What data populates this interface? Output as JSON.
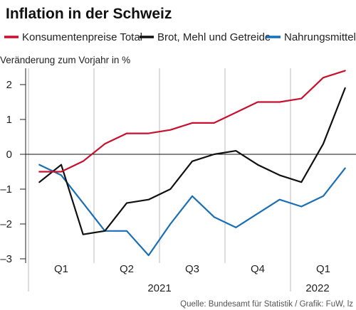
{
  "chart_data": {
    "type": "line",
    "title": "Inflation in der Schweiz",
    "ylabel": "Veränderung zum Vorjahr in %",
    "source": "Quelle: Bundesamt für Statistik / Grafik: FuW, lz",
    "ylim": [
      -3,
      2.5
    ],
    "yticks": [
      {
        "value": 2,
        "label": "2"
      },
      {
        "value": 1,
        "label": "1"
      },
      {
        "value": 0,
        "label": "0"
      },
      {
        "value": -1,
        "label": "–1"
      },
      {
        "value": -2,
        "label": "–2"
      },
      {
        "value": -3,
        "label": "–3"
      }
    ],
    "quarters": [
      "Q1",
      "Q2",
      "Q3",
      "Q4",
      "Q1"
    ],
    "years": [
      "2021",
      "2022"
    ],
    "grid": "vertical quarter separators; horizontal zero line",
    "legend_position": "top",
    "series": [
      {
        "name": "Konsumentenpreise Total",
        "color": "#c8102e",
        "values": [
          -0.5,
          -0.5,
          -0.2,
          0.3,
          0.6,
          0.6,
          0.7,
          0.9,
          0.9,
          1.2,
          1.5,
          1.5,
          1.6,
          2.2,
          2.4
        ]
      },
      {
        "name": "Brot, Mehl und Getreide",
        "color": "#111111",
        "values": [
          -0.8,
          -0.3,
          -2.3,
          -2.2,
          -1.4,
          -1.3,
          -1.0,
          -0.2,
          0.0,
          0.1,
          -0.3,
          -0.6,
          -0.8,
          0.3,
          1.9
        ]
      },
      {
        "name": "Nahrungsmittel",
        "color": "#1a6fb5",
        "values": [
          -0.3,
          -0.6,
          -1.4,
          -2.2,
          -2.2,
          -2.9,
          -2.0,
          -1.2,
          -1.8,
          -2.1,
          -1.7,
          -1.3,
          -1.5,
          -1.2,
          -0.4
        ]
      }
    ]
  }
}
